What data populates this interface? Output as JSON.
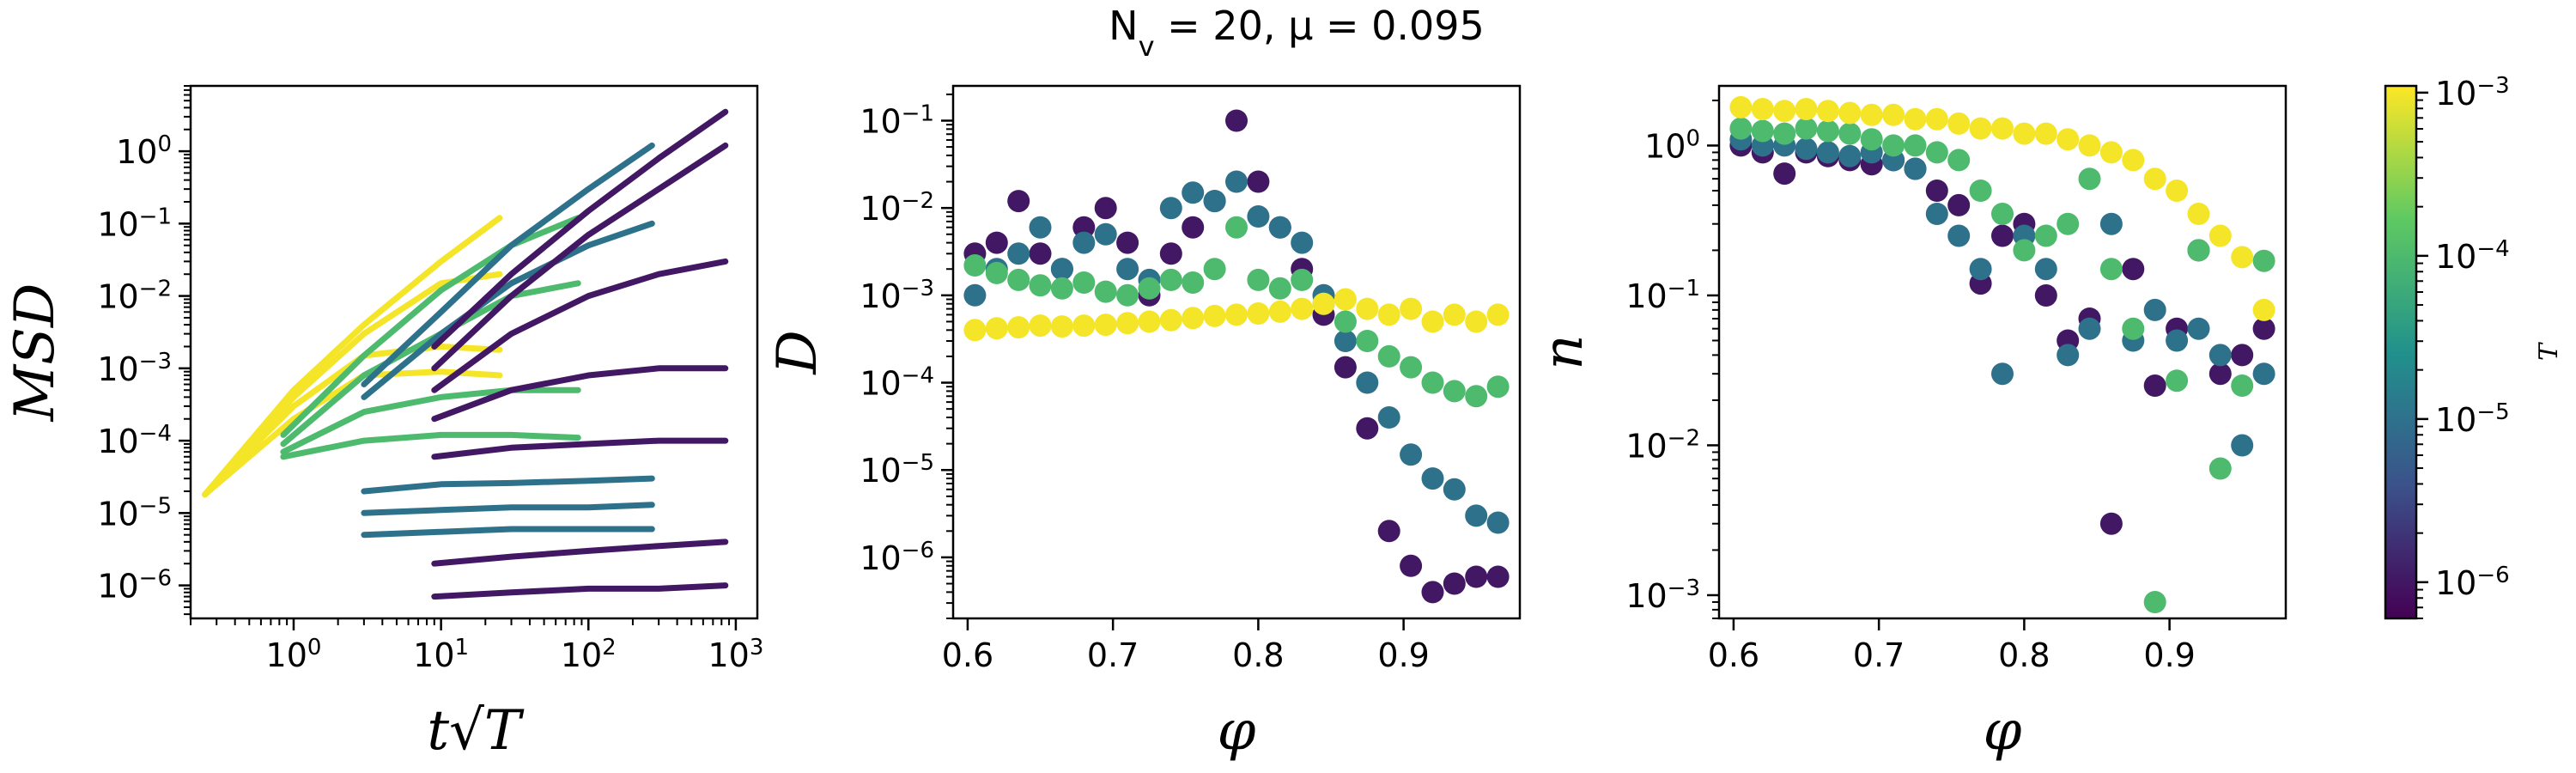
{
  "suptitle": "N_v = 20, μ = 0.095",
  "colormap": {
    "stops": [
      "#440154",
      "#3b528b",
      "#21918c",
      "#5ec962",
      "#fde725"
    ],
    "label": "T",
    "ticks": [
      "10^-6",
      "10^-5",
      "10^-4",
      "10^-3"
    ],
    "range": [
      6e-07,
      0.0011
    ]
  },
  "chart_data": [
    {
      "type": "line",
      "id": "msd",
      "xlabel": "t√T",
      "ylabel": "MSD",
      "xscale": "log",
      "yscale": "log",
      "xlim": [
        0.2,
        1400
      ],
      "ylim": [
        3.5e-07,
        8
      ],
      "xticks": [
        "10^0",
        "10^1",
        "10^2",
        "10^3"
      ],
      "yticks": [
        "10^-6",
        "10^-5",
        "10^-4",
        "10^-3",
        "10^-2",
        "10^-1",
        "10^0"
      ],
      "series": [
        {
          "T": 0.001,
          "x": [
            0.25,
            1,
            3,
            10,
            25
          ],
          "y": [
            1.8e-05,
            0.0005,
            0.004,
            0.03,
            0.12
          ]
        },
        {
          "T": 0.001,
          "x": [
            0.25,
            1,
            3,
            10,
            25
          ],
          "y": [
            1.8e-05,
            0.0004,
            0.003,
            0.015,
            0.02
          ]
        },
        {
          "T": 0.001,
          "x": [
            0.25,
            1,
            3,
            10,
            25
          ],
          "y": [
            1.8e-05,
            0.0003,
            0.0015,
            0.002,
            0.0018
          ]
        },
        {
          "T": 0.001,
          "x": [
            0.25,
            1,
            3,
            10,
            25
          ],
          "y": [
            1.8e-05,
            0.0002,
            0.0008,
            0.0009,
            0.0008
          ]
        },
        {
          "T": 0.0001,
          "x": [
            0.85,
            3,
            10,
            30,
            85
          ],
          "y": [
            0.00012,
            0.0015,
            0.012,
            0.05,
            0.12
          ]
        },
        {
          "T": 0.0001,
          "x": [
            0.85,
            3,
            10,
            30,
            85
          ],
          "y": [
            9e-05,
            0.0008,
            0.003,
            0.01,
            0.015
          ]
        },
        {
          "T": 0.0001,
          "x": [
            0.85,
            3,
            10,
            30,
            85
          ],
          "y": [
            7e-05,
            0.00025,
            0.0004,
            0.0005,
            0.0005
          ]
        },
        {
          "T": 0.0001,
          "x": [
            0.85,
            3,
            10,
            30,
            85
          ],
          "y": [
            6e-05,
            0.0001,
            0.00012,
            0.00012,
            0.00011
          ]
        },
        {
          "T": 1e-05,
          "x": [
            3,
            10,
            30,
            100,
            270
          ],
          "y": [
            0.0006,
            0.006,
            0.05,
            0.3,
            1.2
          ]
        },
        {
          "T": 1e-05,
          "x": [
            3,
            10,
            30,
            100,
            270
          ],
          "y": [
            0.0004,
            0.003,
            0.015,
            0.05,
            0.1
          ]
        },
        {
          "T": 1e-05,
          "x": [
            3,
            10,
            30,
            100,
            270
          ],
          "y": [
            2e-05,
            2.5e-05,
            2.6e-05,
            2.8e-05,
            3e-05
          ]
        },
        {
          "T": 1e-05,
          "x": [
            3,
            10,
            30,
            100,
            270
          ],
          "y": [
            1e-05,
            1.1e-05,
            1.2e-05,
            1.2e-05,
            1.3e-05
          ]
        },
        {
          "T": 1e-05,
          "x": [
            3,
            10,
            30,
            100,
            270
          ],
          "y": [
            5e-06,
            5.5e-06,
            6e-06,
            6e-06,
            6e-06
          ]
        },
        {
          "T": 1e-06,
          "x": [
            9,
            30,
            100,
            300,
            850
          ],
          "y": [
            0.002,
            0.02,
            0.15,
            0.8,
            3.5
          ]
        },
        {
          "T": 1e-06,
          "x": [
            9,
            30,
            100,
            300,
            850
          ],
          "y": [
            0.001,
            0.01,
            0.07,
            0.3,
            1.2
          ]
        },
        {
          "T": 1e-06,
          "x": [
            9,
            30,
            100,
            300,
            850
          ],
          "y": [
            0.0005,
            0.003,
            0.01,
            0.02,
            0.03
          ]
        },
        {
          "T": 1e-06,
          "x": [
            9,
            30,
            100,
            300,
            850
          ],
          "y": [
            0.0002,
            0.0005,
            0.0008,
            0.001,
            0.001
          ]
        },
        {
          "T": 1e-06,
          "x": [
            9,
            30,
            100,
            300,
            850
          ],
          "y": [
            6e-05,
            8e-05,
            9e-05,
            0.0001,
            0.0001
          ]
        },
        {
          "T": 1e-06,
          "x": [
            9,
            30,
            100,
            300,
            850
          ],
          "y": [
            2e-06,
            2.5e-06,
            3e-06,
            3.5e-06,
            4e-06
          ]
        },
        {
          "T": 1e-06,
          "x": [
            9,
            30,
            100,
            300,
            850
          ],
          "y": [
            7e-07,
            8e-07,
            9e-07,
            9e-07,
            1e-06
          ]
        }
      ]
    },
    {
      "type": "scatter",
      "id": "D",
      "xlabel": "φ",
      "ylabel": "D",
      "yscale": "log",
      "xlim": [
        0.59,
        0.98
      ],
      "ylim": [
        2e-07,
        0.25
      ],
      "xticks": [
        "0.6",
        "0.7",
        "0.8",
        "0.9"
      ],
      "yticks": [
        "10^-6",
        "10^-5",
        "10^-4",
        "10^-3",
        "10^-2",
        "10^-1"
      ],
      "series": [
        {
          "T": 1e-06,
          "x": [
            0.605,
            0.62,
            0.635,
            0.65,
            0.665,
            0.68,
            0.695,
            0.71,
            0.725,
            0.74,
            0.755,
            0.77,
            0.785,
            0.8,
            0.815,
            0.83,
            0.845,
            0.86,
            0.875,
            0.89,
            0.905,
            0.92,
            0.935,
            0.95,
            0.965
          ],
          "y": [
            0.003,
            0.004,
            0.012,
            0.003,
            0.002,
            0.006,
            0.01,
            0.004,
            0.001,
            0.003,
            0.006,
            0.012,
            0.1,
            0.02,
            0.006,
            0.002,
            0.0006,
            0.00015,
            3e-05,
            2e-06,
            8e-07,
            4e-07,
            5e-07,
            6e-07,
            6e-07
          ]
        },
        {
          "T": 1e-05,
          "x": [
            0.605,
            0.62,
            0.635,
            0.65,
            0.665,
            0.68,
            0.695,
            0.71,
            0.725,
            0.74,
            0.755,
            0.77,
            0.785,
            0.8,
            0.815,
            0.83,
            0.845,
            0.86,
            0.875,
            0.89,
            0.905,
            0.92,
            0.935,
            0.95,
            0.965
          ],
          "y": [
            0.001,
            0.002,
            0.003,
            0.006,
            0.002,
            0.004,
            0.005,
            0.002,
            0.0015,
            0.01,
            0.015,
            0.012,
            0.02,
            0.008,
            0.006,
            0.004,
            0.001,
            0.0003,
            0.0001,
            4e-05,
            1.5e-05,
            8e-06,
            6e-06,
            3e-06,
            2.5e-06
          ]
        },
        {
          "T": 0.0001,
          "x": [
            0.605,
            0.62,
            0.635,
            0.65,
            0.665,
            0.68,
            0.695,
            0.71,
            0.725,
            0.74,
            0.755,
            0.77,
            0.785,
            0.8,
            0.815,
            0.83,
            0.845,
            0.86,
            0.875,
            0.89,
            0.905,
            0.92,
            0.935,
            0.95,
            0.965
          ],
          "y": [
            0.0022,
            0.0018,
            0.0015,
            0.0013,
            0.0012,
            0.0014,
            0.0011,
            0.001,
            0.0012,
            0.0015,
            0.0014,
            0.002,
            0.006,
            0.0015,
            0.0012,
            0.0015,
            0.0008,
            0.0005,
            0.0003,
            0.0002,
            0.00015,
            0.0001,
            8e-05,
            7e-05,
            9e-05
          ]
        },
        {
          "T": 0.001,
          "x": [
            0.605,
            0.62,
            0.635,
            0.65,
            0.665,
            0.68,
            0.695,
            0.71,
            0.725,
            0.74,
            0.755,
            0.77,
            0.785,
            0.8,
            0.815,
            0.83,
            0.845,
            0.86,
            0.875,
            0.89,
            0.905,
            0.92,
            0.935,
            0.95,
            0.965
          ],
          "y": [
            0.0004,
            0.00042,
            0.00043,
            0.00045,
            0.00044,
            0.00045,
            0.00046,
            0.00048,
            0.0005,
            0.00052,
            0.00055,
            0.00058,
            0.0006,
            0.00062,
            0.00065,
            0.0007,
            0.0008,
            0.0009,
            0.0007,
            0.0006,
            0.0007,
            0.0005,
            0.0006,
            0.0005,
            0.0006
          ]
        }
      ]
    },
    {
      "type": "scatter",
      "id": "n",
      "xlabel": "φ",
      "ylabel": "n",
      "yscale": "log",
      "xlim": [
        0.59,
        0.98
      ],
      "ylim": [
        0.0007,
        2.5
      ],
      "xticks": [
        "0.6",
        "0.7",
        "0.8",
        "0.9"
      ],
      "yticks": [
        "10^-3",
        "10^-2",
        "10^-1",
        "10^0"
      ],
      "series": [
        {
          "T": 1e-06,
          "x": [
            0.605,
            0.62,
            0.635,
            0.65,
            0.665,
            0.68,
            0.695,
            0.71,
            0.725,
            0.74,
            0.755,
            0.77,
            0.785,
            0.8,
            0.815,
            0.83,
            0.845,
            0.86,
            0.875,
            0.89,
            0.905,
            0.92,
            0.935,
            0.95,
            0.965
          ],
          "y": [
            1.0,
            0.9,
            0.65,
            0.9,
            0.85,
            0.8,
            0.75,
            0.8,
            0.7,
            0.5,
            0.4,
            0.12,
            0.25,
            0.3,
            0.1,
            0.05,
            0.07,
            0.003,
            0.15,
            0.025,
            0.06,
            0.2,
            0.03,
            0.04,
            0.06
          ]
        },
        {
          "T": 1e-05,
          "x": [
            0.605,
            0.62,
            0.635,
            0.65,
            0.665,
            0.68,
            0.695,
            0.71,
            0.725,
            0.74,
            0.755,
            0.77,
            0.785,
            0.8,
            0.815,
            0.83,
            0.845,
            0.86,
            0.875,
            0.89,
            0.905,
            0.92,
            0.935,
            0.95,
            0.965
          ],
          "y": [
            1.1,
            1.0,
            1.0,
            0.95,
            0.9,
            0.85,
            0.9,
            0.8,
            0.7,
            0.35,
            0.25,
            0.15,
            0.03,
            0.25,
            0.15,
            0.04,
            0.06,
            0.3,
            0.05,
            0.08,
            0.05,
            0.06,
            0.04,
            0.01,
            0.03
          ]
        },
        {
          "T": 0.0001,
          "x": [
            0.605,
            0.62,
            0.635,
            0.65,
            0.665,
            0.68,
            0.695,
            0.71,
            0.725,
            0.74,
            0.755,
            0.77,
            0.785,
            0.8,
            0.815,
            0.83,
            0.845,
            0.86,
            0.875,
            0.89,
            0.905,
            0.92,
            0.935,
            0.95,
            0.965
          ],
          "y": [
            1.3,
            1.25,
            1.2,
            1.3,
            1.25,
            1.2,
            1.1,
            1.0,
            1.0,
            0.9,
            0.8,
            0.5,
            0.35,
            0.2,
            0.25,
            0.3,
            0.6,
            0.15,
            0.06,
            0.0009,
            0.027,
            0.2,
            0.007,
            0.025,
            0.17
          ]
        },
        {
          "T": 0.001,
          "x": [
            0.605,
            0.62,
            0.635,
            0.65,
            0.665,
            0.68,
            0.695,
            0.71,
            0.725,
            0.74,
            0.755,
            0.77,
            0.785,
            0.8,
            0.815,
            0.83,
            0.845,
            0.86,
            0.875,
            0.89,
            0.905,
            0.92,
            0.935,
            0.95,
            0.965
          ],
          "y": [
            1.8,
            1.75,
            1.7,
            1.75,
            1.7,
            1.65,
            1.6,
            1.6,
            1.5,
            1.5,
            1.4,
            1.3,
            1.3,
            1.2,
            1.2,
            1.1,
            1.0,
            0.9,
            0.8,
            0.6,
            0.5,
            0.35,
            0.25,
            0.18,
            0.08
          ]
        }
      ]
    }
  ]
}
